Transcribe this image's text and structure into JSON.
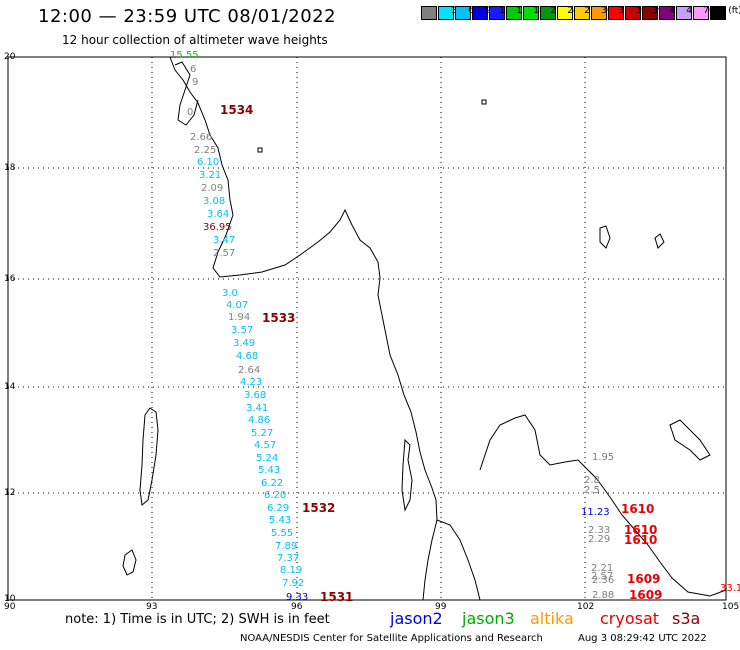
{
  "header": {
    "title": "12:00 — 23:59 UTC 08/01/2022",
    "subtitle": "12 hour collection of altimeter wave heights"
  },
  "scale": {
    "unit": "(ft)",
    "entries": [
      {
        "label": "",
        "color": "#808080"
      },
      {
        "label": "3",
        "color": "#00e5ff"
      },
      {
        "label": "6",
        "color": "#00bfff"
      },
      {
        "label": "9",
        "color": "#0000e6"
      },
      {
        "label": "12",
        "color": "#1a1aff"
      },
      {
        "label": "15",
        "color": "#00cc00"
      },
      {
        "label": "18",
        "color": "#00e000"
      },
      {
        "label": "21",
        "color": "#009900"
      },
      {
        "label": "24",
        "color": "#ffff00"
      },
      {
        "label": "27",
        "color": "#ffcc00"
      },
      {
        "label": "30",
        "color": "#ff9900"
      },
      {
        "label": "33",
        "color": "#ff0000"
      },
      {
        "label": "36",
        "color": "#cc0000"
      },
      {
        "label": "39",
        "color": "#8b0000"
      },
      {
        "label": "42",
        "color": "#800080"
      },
      {
        "label": "45",
        "color": "#c8a0ff"
      },
      {
        "label": "70",
        "color": "#ff99ff"
      },
      {
        "label": "",
        "color": "#000000"
      }
    ]
  },
  "axes": {
    "lat_labels": [
      "20",
      "18",
      "16",
      "14",
      "12",
      "10"
    ],
    "lon_labels": [
      "90",
      "93",
      "96",
      "99",
      "102",
      "105"
    ]
  },
  "wave_heights": [
    {
      "text": "15.55",
      "color": "#00cc00"
    },
    {
      "text": "6",
      "color": "#808080"
    },
    {
      "text": "9",
      "color": "#808080"
    },
    {
      "text": "0",
      "color": "#808080"
    },
    {
      "text": "2.66",
      "color": "#808080"
    },
    {
      "text": "2.25",
      "color": "#808080"
    },
    {
      "text": "6.10",
      "color": "#00bfff"
    },
    {
      "text": "3.21",
      "color": "#00bfff"
    },
    {
      "text": "2.09",
      "color": "#808080"
    },
    {
      "text": "3.08",
      "color": "#00bfff"
    },
    {
      "text": "3.64",
      "color": "#00bfff"
    },
    {
      "text": "36.95",
      "color": "#8b0000"
    },
    {
      "text": "3.47",
      "color": "#00bfff"
    },
    {
      "text": "2.57",
      "color": "#808080"
    },
    {
      "text": "3.0",
      "color": "#00bfff"
    },
    {
      "text": "4.07",
      "color": "#00bfff"
    },
    {
      "text": "1.94",
      "color": "#808080"
    },
    {
      "text": "3.57",
      "color": "#00bfff"
    },
    {
      "text": "3.49",
      "color": "#00bfff"
    },
    {
      "text": "4.68",
      "color": "#00bfff"
    },
    {
      "text": "2.64",
      "color": "#808080"
    },
    {
      "text": "4.23",
      "color": "#00bfff"
    },
    {
      "text": "3.68",
      "color": "#00bfff"
    },
    {
      "text": "3.41",
      "color": "#00bfff"
    },
    {
      "text": "4.86",
      "color": "#00bfff"
    },
    {
      "text": "5.27",
      "color": "#00bfff"
    },
    {
      "text": "4.57",
      "color": "#00bfff"
    },
    {
      "text": "5.24",
      "color": "#00bfff"
    },
    {
      "text": "5.43",
      "color": "#00bfff"
    },
    {
      "text": "6.22",
      "color": "#00bfff"
    },
    {
      "text": "6.20",
      "color": "#00bfff"
    },
    {
      "text": "6.29",
      "color": "#00bfff"
    },
    {
      "text": "5.43",
      "color": "#00bfff"
    },
    {
      "text": "5.55",
      "color": "#00bfff"
    },
    {
      "text": "7.89",
      "color": "#00bfff"
    },
    {
      "text": "7.37",
      "color": "#00bfff"
    },
    {
      "text": "8.19",
      "color": "#00bfff"
    },
    {
      "text": "7.92",
      "color": "#00bfff"
    },
    {
      "text": "9.33",
      "color": "#0000e6"
    },
    {
      "text": "1.95",
      "color": "#808080"
    },
    {
      "text": "2.8",
      "color": "#808080"
    },
    {
      "text": "2.5",
      "color": "#808080"
    },
    {
      "text": "11.23",
      "color": "#0000e6"
    },
    {
      "text": "2.33",
      "color": "#808080"
    },
    {
      "text": "2.29",
      "color": "#808080"
    },
    {
      "text": "2.21",
      "color": "#808080"
    },
    {
      "text": "2.57",
      "color": "#808080"
    },
    {
      "text": "2.36",
      "color": "#808080"
    },
    {
      "text": "2.88",
      "color": "#808080"
    },
    {
      "text": "33.1",
      "color": "#ff0000"
    }
  ],
  "passes": [
    {
      "text": "1534",
      "color": "#8b0000"
    },
    {
      "text": "1533",
      "color": "#8b0000"
    },
    {
      "text": "1532",
      "color": "#8b0000"
    },
    {
      "text": "1531",
      "color": "#8b0000"
    },
    {
      "text": "1610",
      "color": "#e60000"
    },
    {
      "text": "1610",
      "color": "#e60000"
    },
    {
      "text": "1610",
      "color": "#e60000"
    },
    {
      "text": "1609",
      "color": "#e60000"
    },
    {
      "text": "1609",
      "color": "#e60000"
    }
  ],
  "footer": {
    "note": "note: 1) Time is in UTC; 2) SWH is in feet",
    "satellites": [
      {
        "name": "jason2",
        "color": "#0000e6"
      },
      {
        "name": "jason3",
        "color": "#00aa00"
      },
      {
        "name": "altika",
        "color": "#ff9900"
      },
      {
        "name": "cryosat",
        "color": "#e60000"
      },
      {
        "name": "s3a",
        "color": "#8b0000"
      }
    ],
    "credit": "NOAA/NESDIS Center for Satellite Applications and Research",
    "timestamp": "Aug  3 08:29:42 UTC 2022"
  }
}
